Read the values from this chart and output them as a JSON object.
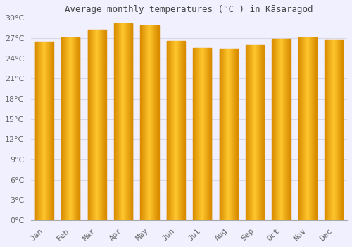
{
  "title": "Average monthly temperatures (°C ) in Kāsaragod",
  "months": [
    "Jan",
    "Feb",
    "Mar",
    "Apr",
    "May",
    "Jun",
    "Jul",
    "Aug",
    "Sep",
    "Oct",
    "Nov",
    "Dec"
  ],
  "temperatures": [
    26.5,
    27.1,
    28.3,
    29.2,
    28.9,
    26.6,
    25.5,
    25.4,
    25.9,
    26.9,
    27.1,
    26.8
  ],
  "bar_color_center": "#FFB833",
  "bar_color_edge": "#E08800",
  "ylim": [
    0,
    30
  ],
  "ytick_step": 3,
  "background_color": "#f0f0ff",
  "plot_bg_color": "#f0f0ff",
  "grid_color": "#d8d8e8",
  "title_fontsize": 9,
  "tick_fontsize": 8,
  "title_color": "#444444",
  "tick_color": "#666666"
}
